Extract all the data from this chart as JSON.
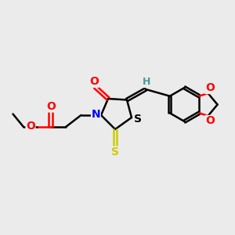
{
  "bg_color": "#ebebeb",
  "bond_color": "#000000",
  "bond_width": 1.8,
  "atom_colors": {
    "O": "#ff0000",
    "N": "#0000ff",
    "S_thioxo": "#cccc00",
    "S_ring": "#000000",
    "H": "#4a9999"
  },
  "font_size_atom": 10,
  "figsize": [
    3.0,
    3.0
  ],
  "dpi": 100,
  "xlim": [
    0,
    10
  ],
  "ylim": [
    0,
    10
  ]
}
